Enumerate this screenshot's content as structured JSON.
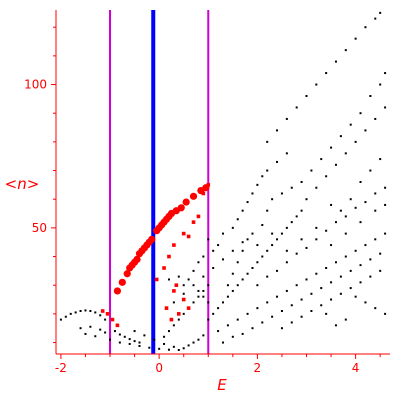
{
  "chart_data": {
    "type": "scatter",
    "title": "",
    "xlabel": "E",
    "ylabel": "<n>",
    "xlim": [
      -2.1,
      4.7
    ],
    "ylim": [
      6,
      126
    ],
    "x_ticks": [
      -2,
      0,
      2,
      4
    ],
    "y_ticks": [
      50,
      100
    ],
    "x_tick_labels": [
      "-2",
      "0",
      "2",
      "4"
    ],
    "y_tick_labels": [
      "50",
      "100"
    ],
    "grid": false,
    "colors": {
      "axes": "#ff0000",
      "background_points": "#000000",
      "highlighted_points": "#ff0000",
      "central_line": "#0000ff",
      "boundary_lines": "#d000d0"
    },
    "reference_lines": [
      {
        "name": "lower-bound",
        "x": -1.0,
        "color": "#d000d0"
      },
      {
        "name": "center",
        "x": -0.12,
        "color": "#0000ff"
      },
      {
        "name": "upper-bound",
        "x": 1.0,
        "color": "#d000d0"
      }
    ],
    "series": [
      {
        "role": "background",
        "marker": "small-black-dot",
        "points": [
          [
            -2.0,
            18
          ],
          [
            -1.9,
            19
          ],
          [
            -1.8,
            20
          ],
          [
            -1.7,
            20.5
          ],
          [
            -1.6,
            21
          ],
          [
            -1.5,
            21.2
          ],
          [
            -1.4,
            21
          ],
          [
            -1.3,
            20.5
          ],
          [
            -1.2,
            19.5
          ],
          [
            -1.1,
            18
          ],
          [
            -1.6,
            15
          ],
          [
            -1.4,
            15.5
          ],
          [
            -1.2,
            14.5
          ],
          [
            -1.1,
            13.5
          ],
          [
            -0.9,
            14
          ],
          [
            -0.8,
            12.8
          ],
          [
            -0.7,
            12
          ],
          [
            -0.6,
            11.2
          ],
          [
            -0.5,
            10.5
          ],
          [
            -0.4,
            10
          ],
          [
            -1.5,
            13
          ],
          [
            -1.3,
            12.2
          ],
          [
            -1.0,
            11
          ],
          [
            -0.8,
            10
          ],
          [
            -0.6,
            9.5
          ],
          [
            -0.4,
            8.8
          ],
          [
            -0.2,
            8.2
          ],
          [
            0.0,
            7.8
          ],
          [
            0.2,
            7.5
          ],
          [
            0.4,
            7.4
          ],
          [
            -0.5,
            14
          ],
          [
            -0.3,
            12.5
          ],
          [
            -0.1,
            11
          ],
          [
            0.1,
            9.5
          ],
          [
            0.3,
            8.5
          ],
          [
            0.5,
            8
          ],
          [
            0.6,
            9
          ],
          [
            0.7,
            10
          ],
          [
            0.8,
            11
          ],
          [
            0.9,
            12.5
          ],
          [
            0.1,
            12
          ],
          [
            0.2,
            14
          ],
          [
            0.3,
            16
          ],
          [
            0.4,
            18
          ],
          [
            0.5,
            20
          ],
          [
            0.6,
            22
          ],
          [
            0.7,
            24
          ],
          [
            0.8,
            26
          ],
          [
            0.9,
            28
          ],
          [
            1.0,
            30
          ],
          [
            0.3,
            24
          ],
          [
            0.5,
            27
          ],
          [
            0.7,
            30
          ],
          [
            0.9,
            33
          ],
          [
            1.1,
            36
          ],
          [
            1.3,
            39
          ],
          [
            1.5,
            42
          ],
          [
            1.7,
            45
          ],
          [
            1.9,
            48
          ],
          [
            2.1,
            51
          ],
          [
            1.5,
            50
          ],
          [
            1.6,
            53
          ],
          [
            1.7,
            56
          ],
          [
            1.8,
            59
          ],
          [
            1.9,
            62
          ],
          [
            2.0,
            65
          ],
          [
            2.1,
            68
          ],
          [
            2.2,
            70
          ],
          [
            2.4,
            73
          ],
          [
            2.6,
            76
          ],
          [
            2.2,
            80
          ],
          [
            2.4,
            84
          ],
          [
            2.6,
            88
          ],
          [
            2.8,
            92
          ],
          [
            3.0,
            96
          ],
          [
            3.2,
            100
          ],
          [
            3.4,
            104
          ],
          [
            3.6,
            108
          ],
          [
            3.8,
            112
          ],
          [
            4.0,
            116
          ],
          [
            4.2,
            120
          ],
          [
            4.4,
            123
          ],
          [
            4.5,
            125
          ],
          [
            3.0,
            60
          ],
          [
            3.2,
            64
          ],
          [
            3.4,
            68
          ],
          [
            3.6,
            72
          ],
          [
            3.8,
            76
          ],
          [
            4.0,
            80
          ],
          [
            4.2,
            84
          ],
          [
            4.4,
            88
          ],
          [
            4.6,
            92
          ],
          [
            3.5,
            58
          ],
          [
            3.7,
            56
          ],
          [
            3.9,
            60
          ],
          [
            4.1,
            66
          ],
          [
            4.3,
            70
          ],
          [
            4.5,
            74
          ],
          [
            1.0,
            18
          ],
          [
            1.1,
            20
          ],
          [
            1.2,
            22
          ],
          [
            1.3,
            24
          ],
          [
            1.4,
            26
          ],
          [
            1.5,
            28
          ],
          [
            1.6,
            30
          ],
          [
            1.7,
            32
          ],
          [
            1.8,
            34
          ],
          [
            1.9,
            36
          ],
          [
            2.0,
            38
          ],
          [
            2.1,
            40
          ],
          [
            2.2,
            42
          ],
          [
            2.3,
            44
          ],
          [
            2.4,
            46
          ],
          [
            2.5,
            48
          ],
          [
            2.6,
            50
          ],
          [
            2.7,
            52
          ],
          [
            2.8,
            54
          ],
          [
            2.9,
            56
          ],
          [
            1.2,
            14
          ],
          [
            1.4,
            16
          ],
          [
            1.6,
            18
          ],
          [
            1.8,
            20
          ],
          [
            2.0,
            22
          ],
          [
            2.2,
            24
          ],
          [
            2.4,
            26
          ],
          [
            2.6,
            28
          ],
          [
            2.8,
            30
          ],
          [
            3.0,
            32
          ],
          [
            3.2,
            34
          ],
          [
            3.4,
            36
          ],
          [
            3.6,
            38
          ],
          [
            3.8,
            40
          ],
          [
            4.0,
            42
          ],
          [
            4.2,
            44
          ],
          [
            4.4,
            46
          ],
          [
            4.6,
            48
          ],
          [
            1.3,
            10
          ],
          [
            1.5,
            12
          ],
          [
            1.7,
            13
          ],
          [
            1.9,
            15
          ],
          [
            2.1,
            17
          ],
          [
            2.3,
            19
          ],
          [
            2.5,
            21
          ],
          [
            2.7,
            23
          ],
          [
            2.9,
            25
          ],
          [
            3.1,
            27
          ],
          [
            3.3,
            29
          ],
          [
            3.5,
            31
          ],
          [
            3.7,
            33
          ],
          [
            3.9,
            35
          ],
          [
            4.1,
            37
          ],
          [
            4.3,
            39
          ],
          [
            4.5,
            41
          ],
          [
            2.0,
            30
          ],
          [
            2.2,
            33
          ],
          [
            2.4,
            35
          ],
          [
            2.6,
            38
          ],
          [
            2.8,
            41
          ],
          [
            3.0,
            43
          ],
          [
            3.2,
            46
          ],
          [
            3.4,
            49
          ],
          [
            3.6,
            52
          ],
          [
            3.8,
            54
          ],
          [
            4.0,
            57
          ],
          [
            4.2,
            59
          ],
          [
            4.4,
            62
          ],
          [
            4.6,
            64
          ],
          [
            2.5,
            15
          ],
          [
            2.7,
            17
          ],
          [
            2.9,
            19
          ],
          [
            3.1,
            21
          ],
          [
            3.3,
            23
          ],
          [
            3.5,
            25
          ],
          [
            3.7,
            27
          ],
          [
            3.9,
            29
          ],
          [
            4.1,
            31
          ],
          [
            4.3,
            33
          ],
          [
            4.5,
            35
          ],
          [
            4.6,
            20
          ],
          [
            4.4,
            22
          ],
          [
            4.2,
            24
          ],
          [
            4.0,
            26
          ],
          [
            3.8,
            18
          ],
          [
            3.6,
            16
          ],
          [
            3.4,
            20
          ],
          [
            0.6,
            32
          ],
          [
            0.7,
            35
          ],
          [
            0.8,
            28
          ],
          [
            0.5,
            30
          ],
          [
            0.4,
            33
          ],
          [
            0.2,
            32
          ],
          [
            0.3,
            28
          ],
          [
            0.9,
            26
          ],
          [
            1.0,
            24
          ],
          [
            0.8,
            38
          ],
          [
            0.9,
            40
          ],
          [
            1.1,
            42
          ],
          [
            1.2,
            44
          ],
          [
            1.0,
            46
          ],
          [
            1.3,
            48
          ],
          [
            1.4,
            30
          ],
          [
            1.5,
            34
          ],
          [
            1.6,
            38
          ],
          [
            1.7,
            42
          ],
          [
            1.8,
            46
          ],
          [
            2.2,
            56
          ],
          [
            2.3,
            60
          ],
          [
            2.5,
            62
          ],
          [
            2.7,
            64
          ],
          [
            2.9,
            66
          ],
          [
            3.1,
            70
          ],
          [
            3.3,
            74
          ],
          [
            3.5,
            78
          ],
          [
            3.7,
            82
          ],
          [
            3.9,
            86
          ],
          [
            4.1,
            90
          ],
          [
            4.3,
            96
          ],
          [
            4.5,
            100
          ],
          [
            4.6,
            104
          ],
          [
            2.0,
            44
          ],
          [
            2.3,
            48
          ],
          [
            2.6,
            42
          ],
          [
            2.9,
            46
          ],
          [
            3.2,
            50
          ],
          [
            3.5,
            44
          ],
          [
            3.8,
            48
          ],
          [
            4.1,
            52
          ],
          [
            4.4,
            56
          ],
          [
            4.6,
            58
          ]
        ]
      },
      {
        "role": "highlighted",
        "marker": "red-circle",
        "points": [
          [
            -0.85,
            28
          ],
          [
            -0.75,
            31
          ],
          [
            -0.65,
            34
          ],
          [
            -0.55,
            37
          ],
          [
            -0.45,
            39
          ],
          [
            -0.35,
            42
          ],
          [
            -0.25,
            44
          ],
          [
            -0.15,
            46
          ],
          [
            -0.05,
            49
          ],
          [
            0.05,
            51
          ],
          [
            0.15,
            53
          ],
          [
            0.25,
            55
          ],
          [
            0.35,
            56
          ],
          [
            0.45,
            57
          ],
          [
            0.55,
            59
          ],
          [
            0.7,
            61
          ],
          [
            0.85,
            63
          ],
          [
            0.95,
            64
          ],
          [
            -0.6,
            36
          ],
          [
            -0.5,
            38
          ],
          [
            -0.4,
            41
          ],
          [
            -0.3,
            43
          ],
          [
            -0.2,
            45
          ],
          [
            0.0,
            50
          ],
          [
            0.1,
            52
          ],
          [
            0.2,
            54
          ]
        ]
      },
      {
        "role": "highlighted",
        "marker": "small-red-square",
        "points": [
          [
            -1.15,
            21
          ],
          [
            -1.05,
            20
          ],
          [
            -0.95,
            18
          ],
          [
            -0.85,
            16
          ],
          [
            0.2,
            40
          ],
          [
            0.3,
            44
          ],
          [
            0.5,
            48
          ],
          [
            0.6,
            47
          ],
          [
            0.7,
            52
          ],
          [
            0.8,
            54
          ],
          [
            1.0,
            65
          ],
          [
            0.9,
            62
          ],
          [
            0.3,
            28
          ],
          [
            0.5,
            25
          ],
          [
            0.4,
            20
          ],
          [
            0.6,
            22
          ],
          [
            0.35,
            30
          ],
          [
            0.15,
            22
          ],
          [
            0.25,
            18
          ],
          [
            -0.05,
            32
          ],
          [
            0.1,
            36
          ]
        ]
      }
    ]
  }
}
